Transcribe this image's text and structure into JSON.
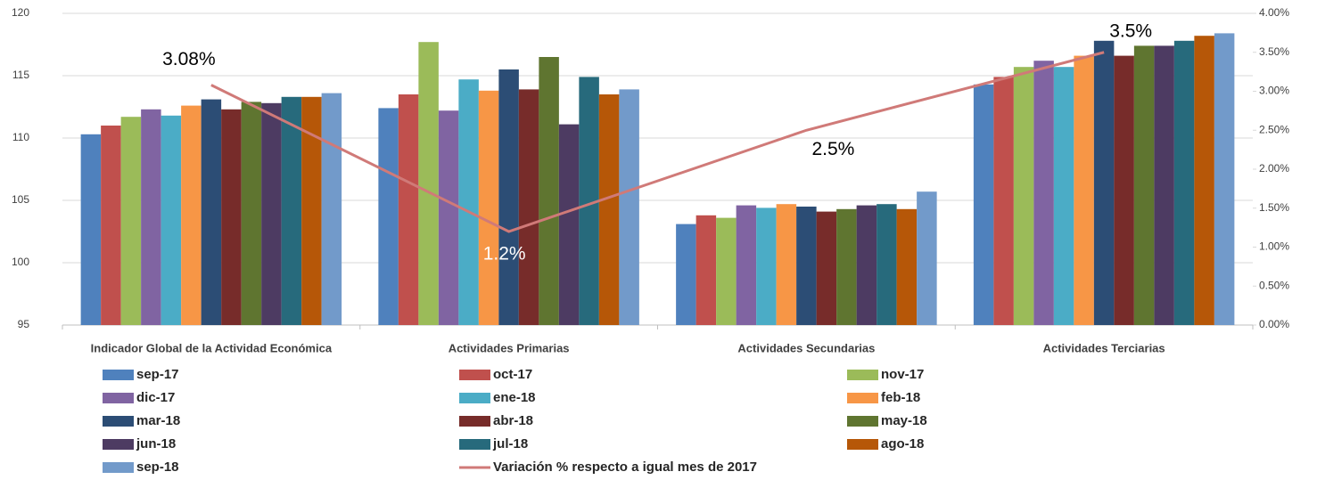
{
  "chart_data": {
    "type": "bar",
    "categories": [
      "Indicador Global de la Actividad Económica",
      "Actividades Primarias",
      "Actividades Secundarias",
      "Actividades Terciarias"
    ],
    "series": [
      {
        "name": "sep-17",
        "color": "#4f81bd",
        "values": [
          110.3,
          112.4,
          103.1,
          114.3
        ]
      },
      {
        "name": "oct-17",
        "color": "#c0504d",
        "values": [
          111.0,
          113.5,
          103.8,
          114.9
        ]
      },
      {
        "name": "nov-17",
        "color": "#9bbb59",
        "values": [
          111.7,
          117.7,
          103.6,
          115.7
        ]
      },
      {
        "name": "dic-17",
        "color": "#8064a2",
        "values": [
          112.3,
          112.2,
          104.6,
          116.2
        ]
      },
      {
        "name": "ene-18",
        "color": "#4bacc6",
        "values": [
          111.8,
          114.7,
          104.4,
          115.7
        ]
      },
      {
        "name": "feb-18",
        "color": "#f79646",
        "values": [
          112.6,
          113.8,
          104.7,
          116.6
        ]
      },
      {
        "name": "mar-18",
        "color": "#2c4d75",
        "values": [
          113.1,
          115.5,
          104.5,
          117.8
        ]
      },
      {
        "name": "abr-18",
        "color": "#772c2a",
        "values": [
          112.3,
          113.9,
          104.1,
          116.6
        ]
      },
      {
        "name": "may-18",
        "color": "#5f7530",
        "values": [
          112.9,
          116.5,
          104.3,
          117.4
        ]
      },
      {
        "name": "jun-18",
        "color": "#4d3b62",
        "values": [
          112.8,
          111.1,
          104.6,
          117.4
        ]
      },
      {
        "name": "jul-18",
        "color": "#276a7c",
        "values": [
          113.3,
          114.9,
          104.7,
          117.8
        ]
      },
      {
        "name": "ago-18",
        "color": "#b65708",
        "values": [
          113.3,
          113.5,
          104.3,
          118.2
        ]
      },
      {
        "name": "sep-18",
        "color": "#729aca",
        "values": [
          113.6,
          113.9,
          105.7,
          118.4
        ]
      },
      {
        "name": "Variación % respecto a igual mes de 2017",
        "color": "#d07a78",
        "type": "line",
        "axis": "y2",
        "values": [
          3.08,
          1.2,
          2.5,
          3.5
        ],
        "value_labels": [
          "3.08%",
          "1.2%",
          "2.5%",
          "3.5%"
        ]
      }
    ],
    "ylim": [
      95,
      120
    ],
    "yticks": [
      95,
      100,
      105,
      110,
      115,
      120
    ],
    "y2lim": [
      0,
      4
    ],
    "y2ticks": [
      {
        "value": 0,
        "label": "0.00%"
      },
      {
        "value": 0.5,
        "label": "0.50%"
      },
      {
        "value": 1,
        "label": "1.00%"
      },
      {
        "value": 1.5,
        "label": "1.50%"
      },
      {
        "value": 2,
        "label": "2.00%"
      },
      {
        "value": 2.5,
        "label": "2.50%"
      },
      {
        "value": 3,
        "label": "3.00%"
      },
      {
        "value": 3.5,
        "label": "3.50%"
      },
      {
        "value": 4,
        "label": "4.00%"
      }
    ],
    "grid": true,
    "legend": "bottom"
  }
}
